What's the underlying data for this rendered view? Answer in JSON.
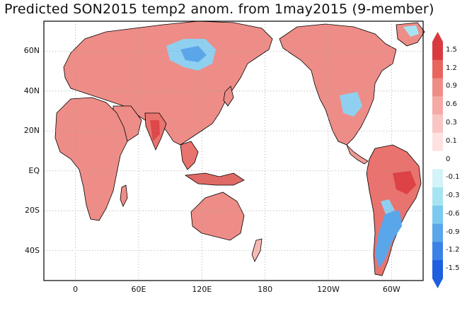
{
  "title": "Predicted SON2015 temp2 anom. from 1may2015 (9-member)",
  "map": {
    "lat_ticks": [
      {
        "value": 60,
        "label": "60N"
      },
      {
        "value": 40,
        "label": "40N"
      },
      {
        "value": 20,
        "label": "20N"
      },
      {
        "value": 0,
        "label": "EQ"
      },
      {
        "value": -20,
        "label": "20S"
      },
      {
        "value": -40,
        "label": "40S"
      }
    ],
    "lon_ticks": [
      {
        "value": 0,
        "label": "0"
      },
      {
        "value": 60,
        "label": "60E"
      },
      {
        "value": 120,
        "label": "120E"
      },
      {
        "value": 180,
        "label": "180"
      },
      {
        "value": 240,
        "label": "120W"
      },
      {
        "value": 300,
        "label": "60W"
      }
    ],
    "lon_range": [
      -30,
      330
    ],
    "lat_range": [
      -55,
      75
    ],
    "grid": "dotted"
  },
  "colorbar": {
    "levels": [
      "1.5",
      "1.2",
      "0.9",
      "0.6",
      "0.3",
      "0.1",
      "0",
      "-0.1",
      "-0.3",
      "-0.6",
      "-0.9",
      "-1.2",
      "-1.5"
    ],
    "colors": [
      "#d93a40",
      "#e9655f",
      "#f08c86",
      "#f5aaa5",
      "#f9c6c3",
      "#fde2e1",
      "#ffffff",
      "#d2f3f8",
      "#a7e4f2",
      "#7cc9ef",
      "#5aa6ea",
      "#3b82e6",
      "#1e5fe0"
    ]
  },
  "colors": {
    "warm": "#ee8d87",
    "warm_strong": "#e06a66",
    "warm_light": "#f6b9b4",
    "cool": "#8fd0f1",
    "cool_strong": "#5aa6ea",
    "ocean": "#ffffff"
  }
}
